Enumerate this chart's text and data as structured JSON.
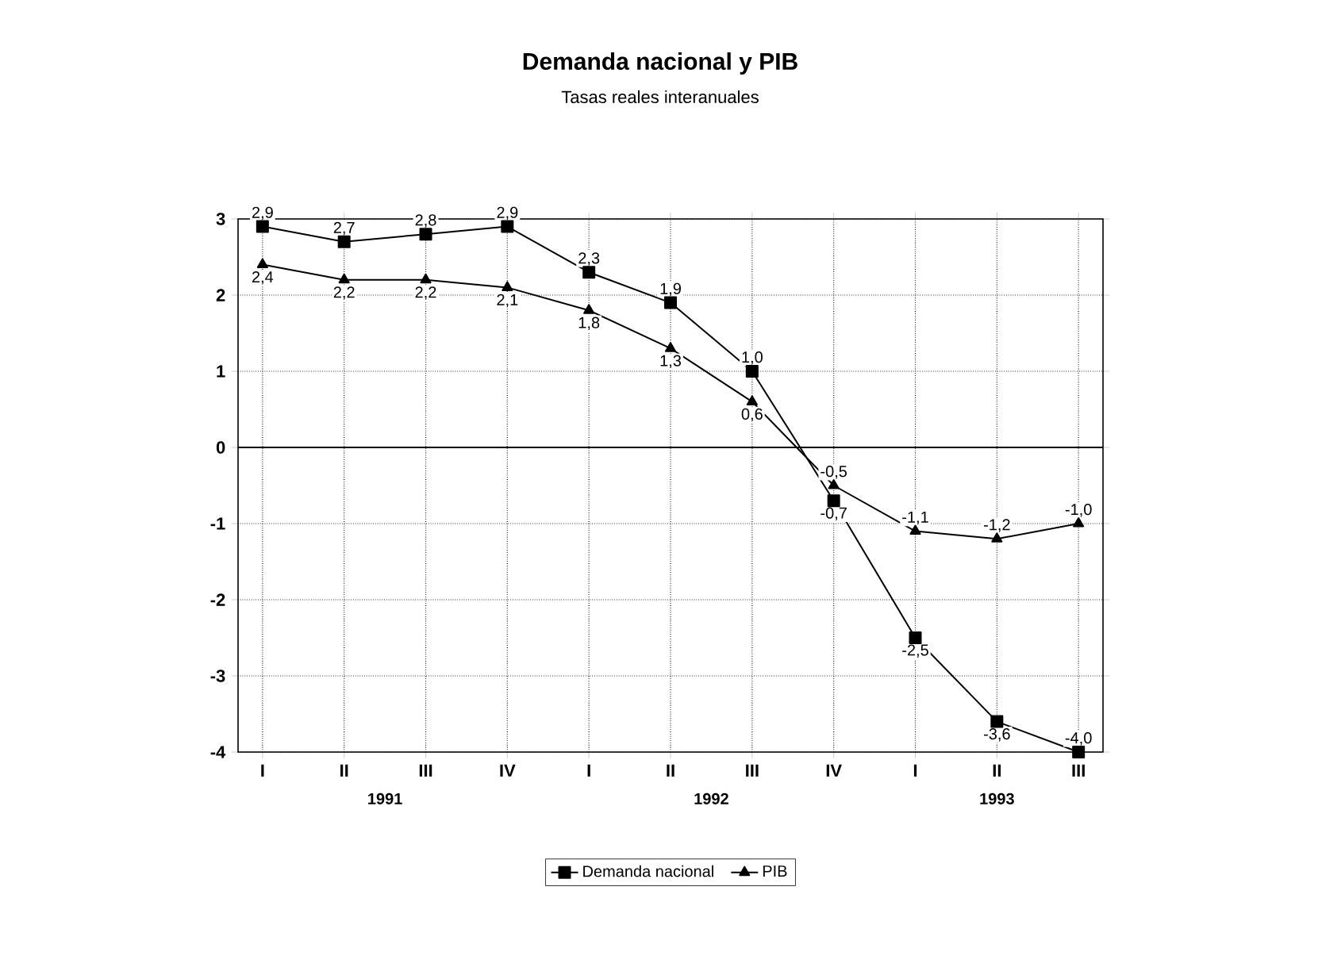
{
  "chart_data": {
    "type": "line",
    "title": "Demanda nacional y PIB",
    "subtitle": "Tasas reales interanuales",
    "categories": [
      "I",
      "II",
      "III",
      "IV",
      "I",
      "II",
      "III",
      "IV",
      "I",
      "II",
      "III"
    ],
    "series": [
      {
        "name": "Demanda nacional",
        "color": "#000000",
        "marker": "square",
        "values": [
          2.9,
          2.7,
          2.8,
          2.9,
          2.3,
          1.9,
          1.0,
          -0.7,
          -2.5,
          -3.6,
          -4.0
        ],
        "value_labels": [
          "2,9",
          "2,7",
          "2,8",
          "2,9",
          "2,3",
          "1,9",
          "1,0",
          "-0,7",
          "-2,5",
          "-3,6",
          "-4,0"
        ]
      },
      {
        "name": "PIB",
        "color": "#000000",
        "marker": "triangle",
        "values": [
          2.4,
          2.2,
          2.2,
          2.1,
          1.8,
          1.3,
          0.6,
          -0.5,
          -1.1,
          -1.2,
          -1.0
        ],
        "value_labels": [
          "2,4",
          "2,2",
          "2,2",
          "2,1",
          "1,8",
          "1,3",
          "0,6",
          "-0,5",
          "-1,1",
          "-1,2",
          "-1,0"
        ]
      }
    ],
    "ylim": [
      -4,
      3
    ],
    "yticks": [
      -4,
      -3,
      -2,
      -1,
      0,
      1,
      2,
      3
    ],
    "ref_lines": [
      {
        "axis": "y",
        "value": 0
      }
    ],
    "annotations": [
      "1991",
      "1992",
      "1993"
    ],
    "grid": true,
    "legend": "bottom",
    "line_style": "solid"
  }
}
